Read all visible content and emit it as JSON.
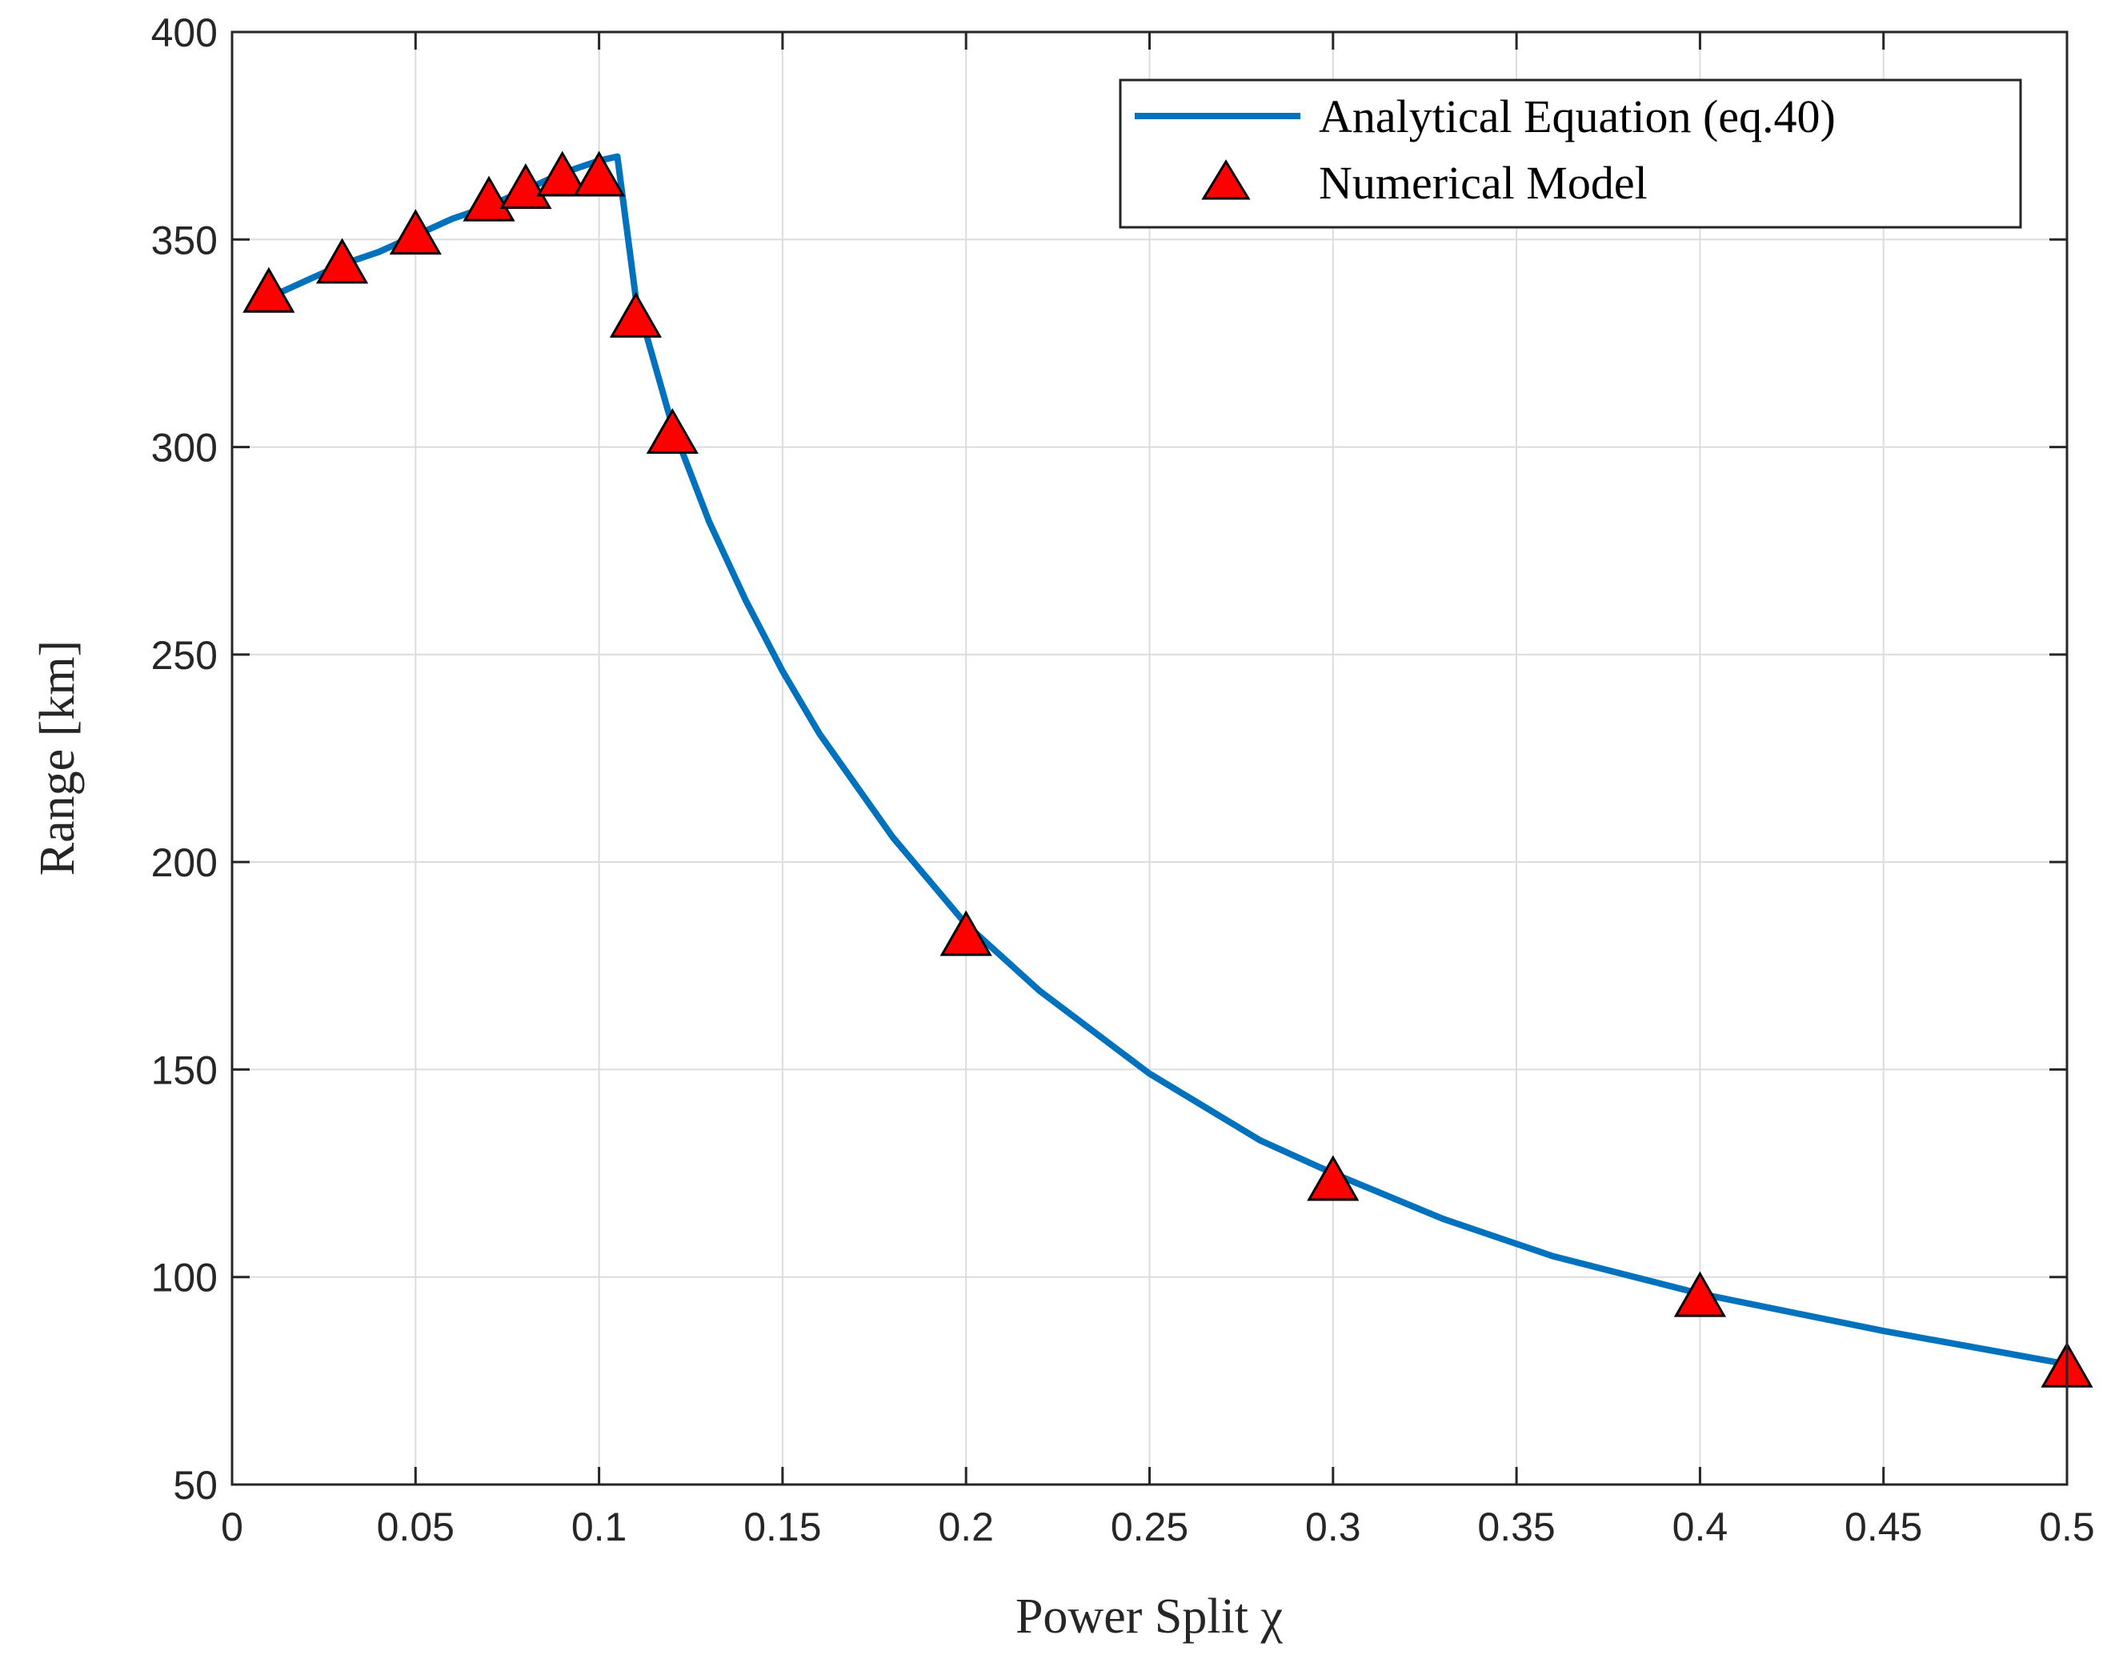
{
  "chart_data": {
    "type": "line",
    "xlabel": "Power Split χ",
    "ylabel": "Range [km]",
    "xlim": [
      0,
      0.5
    ],
    "ylim": [
      50,
      400
    ],
    "xticks": [
      0,
      0.05,
      0.1,
      0.15,
      0.2,
      0.25,
      0.3,
      0.35,
      0.4,
      0.45,
      0.5
    ],
    "xtick_labels": [
      "0",
      "0.05",
      "0.1",
      "0.15",
      "0.2",
      "0.25",
      "0.3",
      "0.35",
      "0.4",
      "0.45",
      "0.5"
    ],
    "yticks": [
      50,
      100,
      150,
      200,
      250,
      300,
      350,
      400
    ],
    "ytick_labels": [
      "50",
      "100",
      "150",
      "200",
      "250",
      "300",
      "350",
      "400"
    ],
    "grid": true,
    "legend_position": "top-right",
    "series": [
      {
        "name": "Analytical Equation (eq.40)",
        "kind": "line",
        "color": "#0072BD",
        "x": [
          0.01,
          0.02,
          0.03,
          0.04,
          0.05,
          0.06,
          0.07,
          0.08,
          0.09,
          0.1,
          0.105,
          0.11,
          0.12,
          0.13,
          0.14,
          0.15,
          0.16,
          0.18,
          0.2,
          0.22,
          0.25,
          0.28,
          0.3,
          0.33,
          0.36,
          0.4,
          0.45,
          0.5
        ],
        "y": [
          336,
          340,
          344,
          347,
          351,
          355,
          358,
          362,
          366,
          369,
          370,
          336,
          305,
          282,
          263,
          246,
          231,
          206,
          185,
          169,
          149,
          133,
          125,
          114,
          105,
          96,
          87,
          79
        ]
      },
      {
        "name": "Numerical Model",
        "kind": "scatter",
        "marker": "triangle",
        "color": "#FF0000",
        "edge_color": "#000000",
        "x": [
          0.01,
          0.03,
          0.05,
          0.07,
          0.08,
          0.09,
          0.1,
          0.11,
          0.12,
          0.2,
          0.3,
          0.4,
          0.5
        ],
        "y": [
          337,
          344,
          351,
          359,
          362,
          365,
          365,
          331,
          303,
          182,
          123,
          95,
          78
        ]
      }
    ]
  }
}
